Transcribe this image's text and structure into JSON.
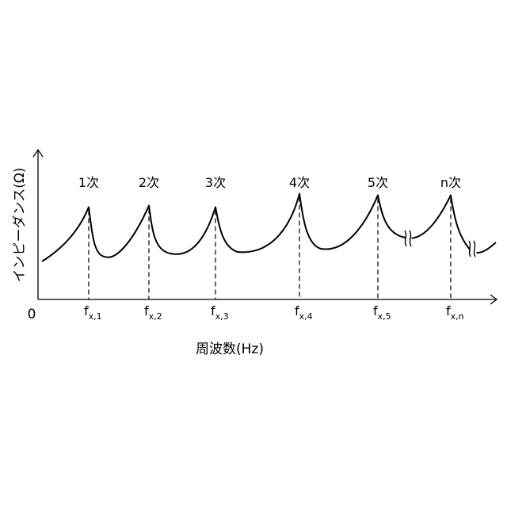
{
  "chart_data": {
    "type": "line",
    "title": "",
    "xlabel": "周波数(Hz)",
    "ylabel": "インピーダンス(Ω)",
    "origin_label": "0",
    "grid": false,
    "legend": "none",
    "x_ticks": [
      {
        "base": "f",
        "sub": "x,1"
      },
      {
        "base": "f",
        "sub": "x,2"
      },
      {
        "base": "f",
        "sub": "x,3"
      },
      {
        "base": "f",
        "sub": "x,4"
      },
      {
        "base": "f",
        "sub": "x,5"
      },
      {
        "base": "f",
        "sub": "x,n"
      }
    ],
    "peaks": [
      {
        "label": "1次",
        "tick": 0,
        "relative_height": 0.62
      },
      {
        "label": "2次",
        "tick": 1,
        "relative_height": 0.63
      },
      {
        "label": "3次",
        "tick": 2,
        "relative_height": 0.62
      },
      {
        "label": "4次",
        "tick": 3,
        "relative_height": 0.71
      },
      {
        "label": "5次",
        "tick": 4,
        "relative_height": 0.7
      },
      {
        "label": "n次",
        "tick": 5,
        "relative_height": 0.7
      }
    ],
    "axis_breaks": [
      "between 5次 and n次",
      "after n次"
    ]
  }
}
